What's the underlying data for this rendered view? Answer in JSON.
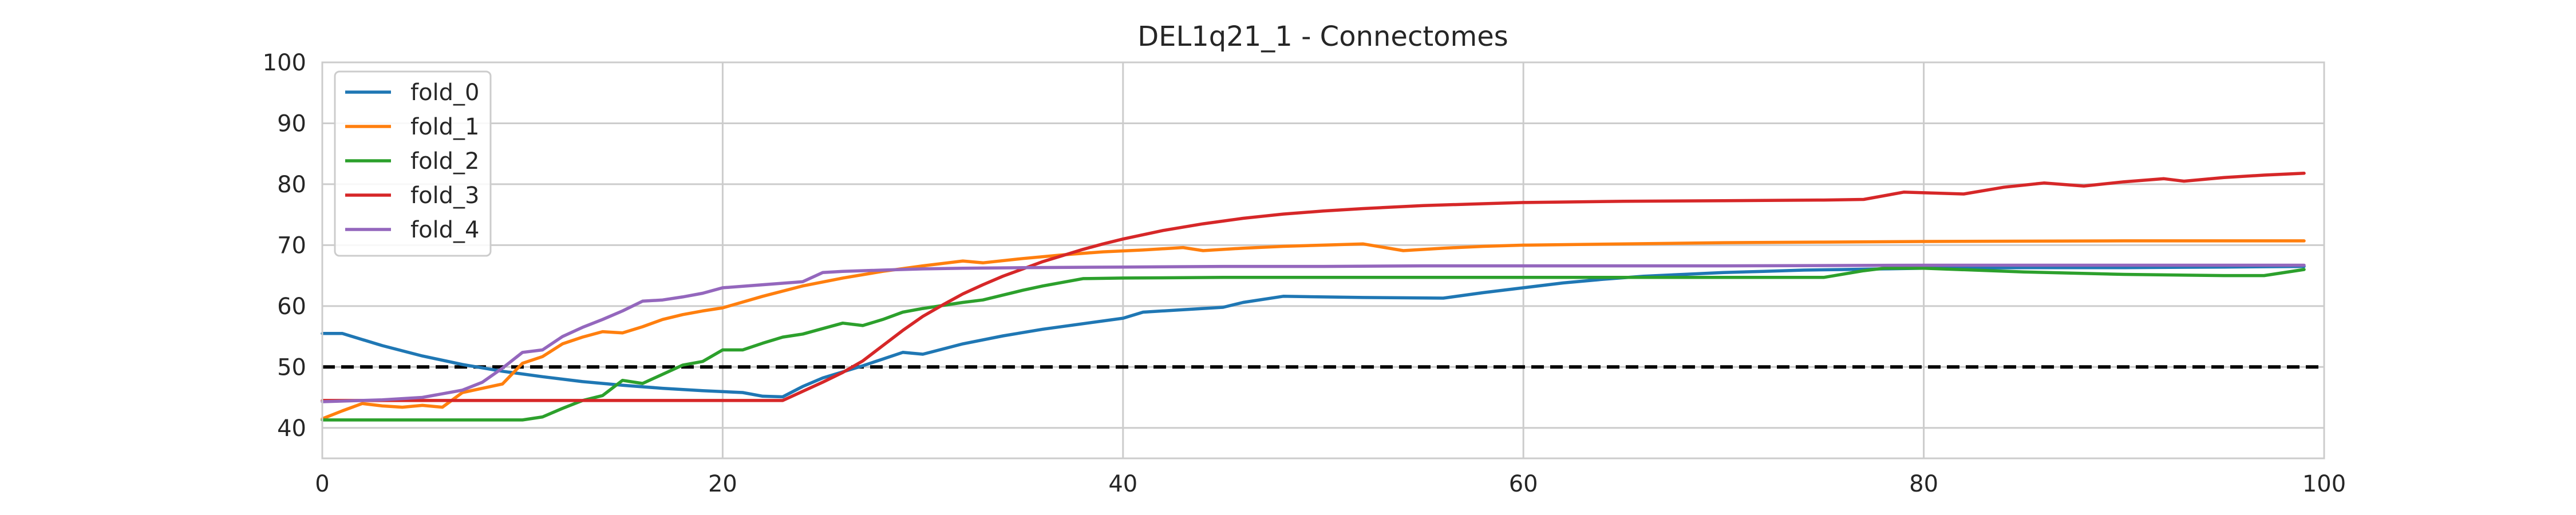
{
  "chart_data": {
    "type": "line",
    "title": "DEL1q21_1 - Connectomes",
    "xlabel": "",
    "ylabel": "",
    "xlim": [
      0,
      100
    ],
    "ylim": [
      35,
      100
    ],
    "xticks": [
      0,
      20,
      40,
      60,
      80,
      100
    ],
    "yticks": [
      40,
      50,
      60,
      70,
      80,
      90,
      100
    ],
    "grid": true,
    "legend_position": "top-left",
    "reference_line": {
      "y": 50,
      "style": "dashed",
      "color": "#000000"
    },
    "series": [
      {
        "name": "fold_0",
        "color": "#1f77b4",
        "points": [
          [
            0,
            55.5
          ],
          [
            1,
            55.5
          ],
          [
            3,
            53.5
          ],
          [
            5,
            51.8
          ],
          [
            7,
            50.4
          ],
          [
            9,
            49.3
          ],
          [
            11,
            48.4
          ],
          [
            13,
            47.6
          ],
          [
            15,
            47.0
          ],
          [
            17,
            46.5
          ],
          [
            19,
            46.1
          ],
          [
            21,
            45.8
          ],
          [
            22,
            45.2
          ],
          [
            23,
            45.1
          ],
          [
            24,
            46.8
          ],
          [
            25,
            48.2
          ],
          [
            27,
            50.2
          ],
          [
            28,
            51.3
          ],
          [
            29,
            52.4
          ],
          [
            30,
            52.1
          ],
          [
            32,
            53.8
          ],
          [
            34,
            55.1
          ],
          [
            36,
            56.2
          ],
          [
            38,
            57.1
          ],
          [
            40,
            58.0
          ],
          [
            41,
            59.0
          ],
          [
            43,
            59.4
          ],
          [
            45,
            59.8
          ],
          [
            46,
            60.6
          ],
          [
            48,
            61.6
          ],
          [
            52,
            61.4
          ],
          [
            56,
            61.3
          ],
          [
            58,
            62.2
          ],
          [
            60,
            63.0
          ],
          [
            62,
            63.8
          ],
          [
            64,
            64.4
          ],
          [
            66,
            64.9
          ],
          [
            68,
            65.2
          ],
          [
            70,
            65.5
          ],
          [
            72,
            65.7
          ],
          [
            74,
            65.9
          ],
          [
            76,
            66.0
          ],
          [
            78,
            66.1
          ],
          [
            80,
            66.2
          ],
          [
            85,
            66.3
          ],
          [
            90,
            66.3
          ],
          [
            95,
            66.4
          ],
          [
            99,
            66.5
          ]
        ]
      },
      {
        "name": "fold_1",
        "color": "#ff7f0e",
        "points": [
          [
            0,
            41.5
          ],
          [
            1,
            42.8
          ],
          [
            2,
            44.0
          ],
          [
            3,
            43.6
          ],
          [
            4,
            43.4
          ],
          [
            5,
            43.7
          ],
          [
            6,
            43.4
          ],
          [
            7,
            45.8
          ],
          [
            8,
            46.5
          ],
          [
            9,
            47.2
          ],
          [
            10,
            50.6
          ],
          [
            11,
            51.7
          ],
          [
            12,
            53.8
          ],
          [
            13,
            54.9
          ],
          [
            14,
            55.8
          ],
          [
            15,
            55.6
          ],
          [
            16,
            56.6
          ],
          [
            17,
            57.8
          ],
          [
            18,
            58.6
          ],
          [
            19,
            59.2
          ],
          [
            20,
            59.7
          ],
          [
            22,
            61.6
          ],
          [
            24,
            63.3
          ],
          [
            26,
            64.6
          ],
          [
            28,
            65.7
          ],
          [
            30,
            66.6
          ],
          [
            32,
            67.4
          ],
          [
            33,
            67.1
          ],
          [
            35,
            67.8
          ],
          [
            37,
            68.4
          ],
          [
            39,
            68.9
          ],
          [
            41,
            69.2
          ],
          [
            43,
            69.6
          ],
          [
            44,
            69.1
          ],
          [
            46,
            69.5
          ],
          [
            48,
            69.8
          ],
          [
            50,
            70.0
          ],
          [
            52,
            70.2
          ],
          [
            54,
            69.1
          ],
          [
            56,
            69.5
          ],
          [
            58,
            69.8
          ],
          [
            60,
            70.0
          ],
          [
            65,
            70.2
          ],
          [
            70,
            70.4
          ],
          [
            75,
            70.5
          ],
          [
            80,
            70.6
          ],
          [
            90,
            70.7
          ],
          [
            99,
            70.7
          ]
        ]
      },
      {
        "name": "fold_2",
        "color": "#2ca02c",
        "points": [
          [
            0,
            41.3
          ],
          [
            2,
            41.3
          ],
          [
            4,
            41.3
          ],
          [
            6,
            41.3
          ],
          [
            8,
            41.3
          ],
          [
            10,
            41.3
          ],
          [
            11,
            41.8
          ],
          [
            12,
            43.2
          ],
          [
            13,
            44.5
          ],
          [
            14,
            45.3
          ],
          [
            15,
            47.8
          ],
          [
            16,
            47.3
          ],
          [
            17,
            48.8
          ],
          [
            18,
            50.3
          ],
          [
            19,
            50.9
          ],
          [
            20,
            52.8
          ],
          [
            21,
            52.8
          ],
          [
            22,
            53.9
          ],
          [
            23,
            54.9
          ],
          [
            24,
            55.4
          ],
          [
            25,
            56.3
          ],
          [
            26,
            57.2
          ],
          [
            27,
            56.8
          ],
          [
            28,
            57.8
          ],
          [
            29,
            59.0
          ],
          [
            30,
            59.6
          ],
          [
            31,
            60.1
          ],
          [
            32,
            60.6
          ],
          [
            33,
            61.0
          ],
          [
            34,
            61.8
          ],
          [
            35,
            62.6
          ],
          [
            36,
            63.3
          ],
          [
            38,
            64.5
          ],
          [
            40,
            64.6
          ],
          [
            45,
            64.7
          ],
          [
            50,
            64.7
          ],
          [
            55,
            64.7
          ],
          [
            60,
            64.7
          ],
          [
            65,
            64.7
          ],
          [
            70,
            64.7
          ],
          [
            75,
            64.7
          ],
          [
            77,
            65.8
          ],
          [
            78,
            66.2
          ],
          [
            80,
            66.2
          ],
          [
            85,
            65.6
          ],
          [
            90,
            65.2
          ],
          [
            95,
            65.0
          ],
          [
            97,
            65.0
          ],
          [
            99,
            66.0
          ]
        ]
      },
      {
        "name": "fold_3",
        "color": "#d62728",
        "points": [
          [
            0,
            44.5
          ],
          [
            4,
            44.5
          ],
          [
            8,
            44.5
          ],
          [
            12,
            44.5
          ],
          [
            16,
            44.5
          ],
          [
            20,
            44.5
          ],
          [
            23,
            44.5
          ],
          [
            24,
            46.0
          ],
          [
            25,
            47.5
          ],
          [
            26,
            49.1
          ],
          [
            27,
            51.0
          ],
          [
            28,
            53.5
          ],
          [
            29,
            56.0
          ],
          [
            30,
            58.3
          ],
          [
            31,
            60.2
          ],
          [
            32,
            62.0
          ],
          [
            33,
            63.5
          ],
          [
            34,
            64.9
          ],
          [
            35,
            66.1
          ],
          [
            36,
            67.3
          ],
          [
            37,
            68.3
          ],
          [
            38,
            69.3
          ],
          [
            39,
            70.2
          ],
          [
            40,
            71.0
          ],
          [
            42,
            72.4
          ],
          [
            44,
            73.5
          ],
          [
            46,
            74.4
          ],
          [
            48,
            75.1
          ],
          [
            50,
            75.6
          ],
          [
            52,
            76.0
          ],
          [
            55,
            76.5
          ],
          [
            58,
            76.8
          ],
          [
            60,
            77.0
          ],
          [
            65,
            77.2
          ],
          [
            70,
            77.3
          ],
          [
            75,
            77.4
          ],
          [
            77,
            77.5
          ],
          [
            79,
            78.7
          ],
          [
            82,
            78.4
          ],
          [
            84,
            79.5
          ],
          [
            86,
            80.2
          ],
          [
            88,
            79.7
          ],
          [
            90,
            80.4
          ],
          [
            92,
            80.9
          ],
          [
            93,
            80.5
          ],
          [
            95,
            81.1
          ],
          [
            97,
            81.5
          ],
          [
            99,
            81.8
          ]
        ]
      },
      {
        "name": "fold_4",
        "color": "#9467bd",
        "points": [
          [
            0,
            44.3
          ],
          [
            3,
            44.6
          ],
          [
            5,
            45.0
          ],
          [
            7,
            46.2
          ],
          [
            8,
            47.5
          ],
          [
            9,
            49.8
          ],
          [
            10,
            52.4
          ],
          [
            11,
            52.8
          ],
          [
            12,
            55.0
          ],
          [
            13,
            56.5
          ],
          [
            14,
            57.8
          ],
          [
            15,
            59.2
          ],
          [
            16,
            60.8
          ],
          [
            17,
            61.0
          ],
          [
            18,
            61.5
          ],
          [
            19,
            62.1
          ],
          [
            20,
            63.0
          ],
          [
            22,
            63.5
          ],
          [
            24,
            64.0
          ],
          [
            25,
            65.5
          ],
          [
            26,
            65.7
          ],
          [
            28,
            65.9
          ],
          [
            30,
            66.1
          ],
          [
            32,
            66.2
          ],
          [
            35,
            66.3
          ],
          [
            40,
            66.4
          ],
          [
            45,
            66.5
          ],
          [
            50,
            66.5
          ],
          [
            55,
            66.6
          ],
          [
            60,
            66.6
          ],
          [
            70,
            66.6
          ],
          [
            80,
            66.7
          ],
          [
            90,
            66.7
          ],
          [
            99,
            66.7
          ]
        ]
      }
    ]
  }
}
